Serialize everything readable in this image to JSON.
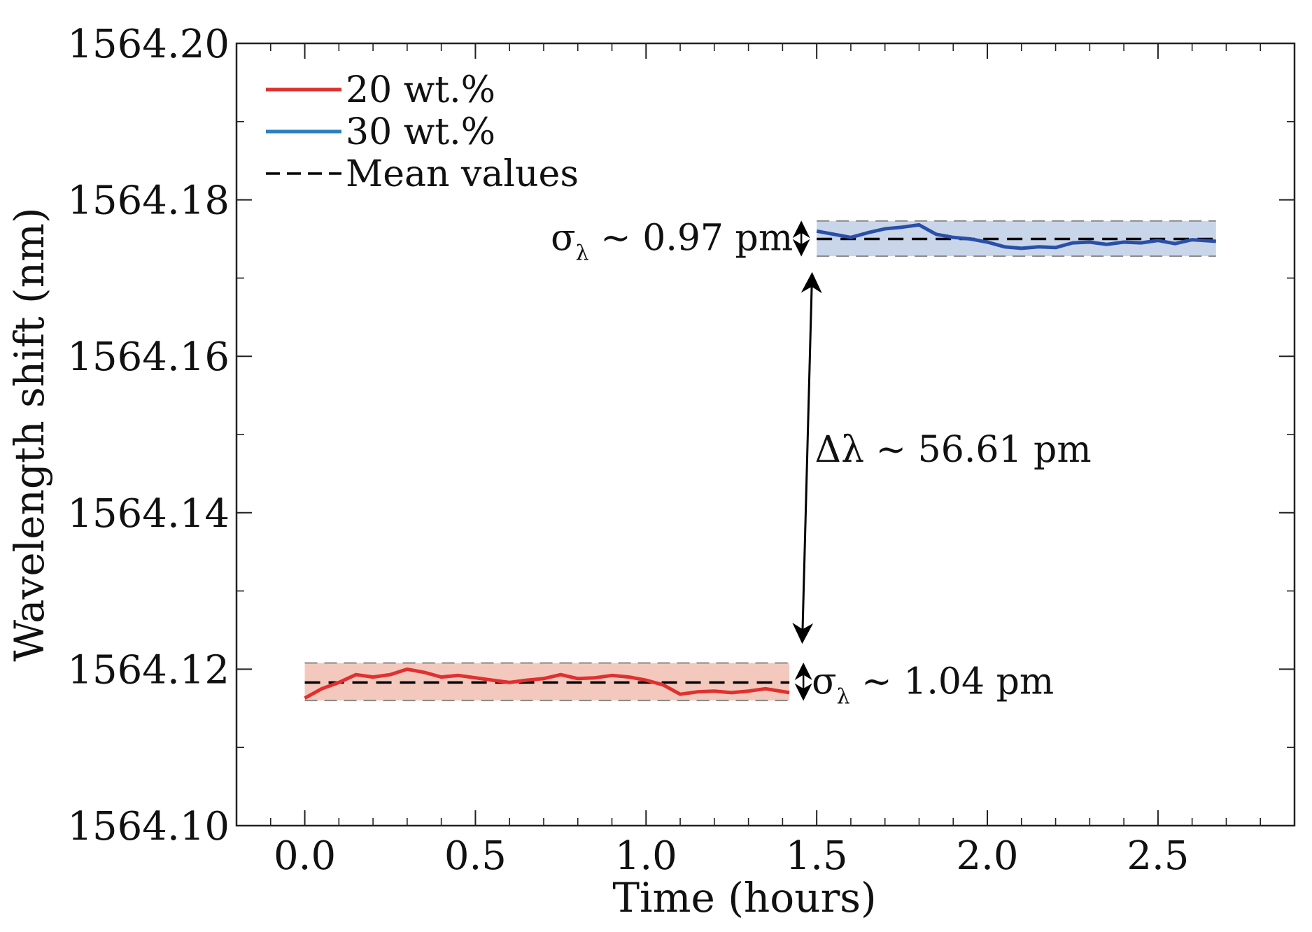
{
  "chart_data": {
    "type": "line",
    "xlabel": "Time (hours)",
    "ylabel": "Wavelength shift (nm)",
    "xlim": [
      -0.2,
      2.9
    ],
    "ylim": [
      1564.1,
      1564.2
    ],
    "x_ticks": [
      "0.0",
      "0.5",
      "1.0",
      "1.5",
      "2.0",
      "2.5"
    ],
    "y_ticks": [
      "1564.10",
      "1564.12",
      "1564.14",
      "1564.16",
      "1564.18",
      "1564.20"
    ],
    "legend_position": "top-left",
    "grid": false,
    "series": [
      {
        "name": "20 wt.%",
        "color": "#e03030",
        "band_color": "#f4c9bd",
        "mean": 1564.1183,
        "std_band": [
          1564.116,
          1564.1208
        ],
        "x": [
          0.0,
          0.05,
          0.1,
          0.15,
          0.2,
          0.25,
          0.3,
          0.35,
          0.4,
          0.45,
          0.5,
          0.55,
          0.6,
          0.65,
          0.7,
          0.75,
          0.8,
          0.85,
          0.9,
          0.95,
          1.0,
          1.05,
          1.1,
          1.15,
          1.2,
          1.25,
          1.3,
          1.35,
          1.42
        ],
        "y": [
          1564.1163,
          1564.1175,
          1564.1183,
          1564.1193,
          1564.119,
          1564.1193,
          1564.12,
          1564.1196,
          1564.119,
          1564.1192,
          1564.1189,
          1564.1186,
          1564.1183,
          1564.1186,
          1564.1188,
          1564.1193,
          1564.1188,
          1564.1189,
          1564.1192,
          1564.119,
          1564.1186,
          1564.118,
          1564.1168,
          1564.1171,
          1564.1172,
          1564.117,
          1564.1172,
          1564.1175,
          1564.117
        ]
      },
      {
        "name": "30 wt.%",
        "color": "#2a4fa8",
        "band_color": "#c9d6ea",
        "mean": 1564.175,
        "std_band": [
          1564.1728,
          1564.1773
        ],
        "x": [
          1.5,
          1.55,
          1.6,
          1.65,
          1.7,
          1.75,
          1.8,
          1.85,
          1.9,
          1.95,
          2.0,
          2.05,
          2.1,
          2.15,
          2.2,
          2.25,
          2.3,
          2.35,
          2.4,
          2.45,
          2.5,
          2.55,
          2.6,
          2.67
        ],
        "y": [
          1564.176,
          1564.1756,
          1564.1752,
          1564.1758,
          1564.1763,
          1564.1765,
          1564.1768,
          1564.1756,
          1564.1752,
          1564.175,
          1564.1746,
          1564.174,
          1564.1738,
          1564.174,
          1564.1739,
          1564.1745,
          1564.1746,
          1564.1743,
          1564.1746,
          1564.1745,
          1564.1748,
          1564.1744,
          1564.1749,
          1564.1747
        ]
      }
    ],
    "legend": [
      {
        "label": "20 wt.%",
        "color": "#e03030",
        "style": "solid"
      },
      {
        "label": "30 wt.%",
        "color": "#2a7fc0",
        "style": "solid"
      },
      {
        "label": "Mean values",
        "color": "#000000",
        "style": "dashed"
      }
    ],
    "annotations": {
      "sigma_30": {
        "prefix": "σ",
        "sub": "λ",
        "suffix": " ~ 0.97 pm"
      },
      "sigma_20": {
        "prefix": "σ",
        "sub": "λ",
        "suffix": " ~ 1.04 pm"
      },
      "delta": "Δλ ~ 56.61 pm",
      "delta_arrow": {
        "x": 1.47,
        "y_from": 1564.1235,
        "y_to": 1564.1705
      }
    }
  }
}
